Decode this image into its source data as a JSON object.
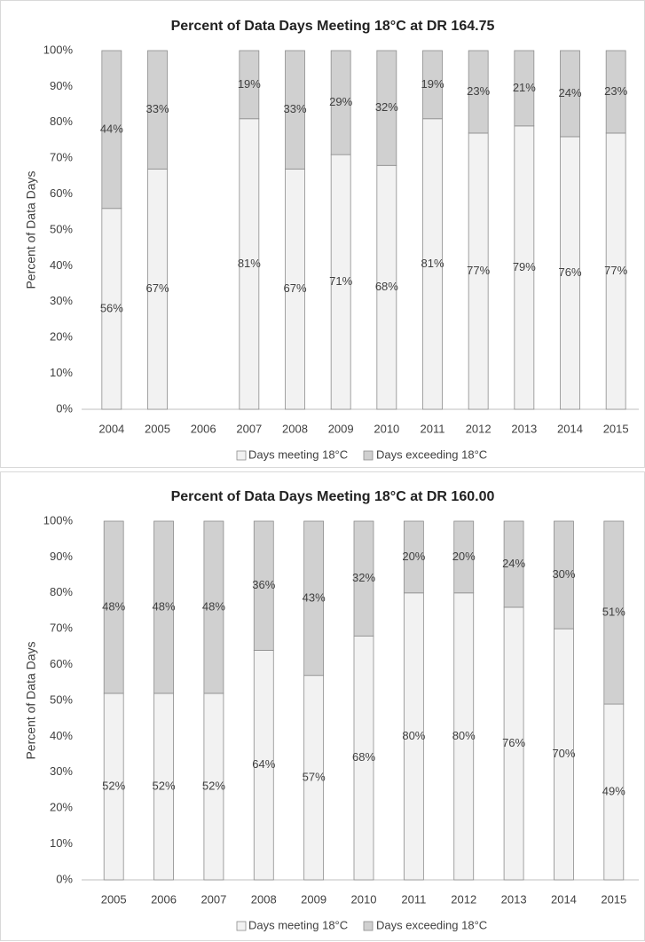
{
  "chart_data": [
    {
      "type": "stacked_bar",
      "title": "Percent of Data Days Meeting 18°C at DR 164.75",
      "y_label": "Percent of Data Days",
      "categories": [
        "2004",
        "2005",
        "2006",
        "2007",
        "2008",
        "2009",
        "2010",
        "2011",
        "2012",
        "2013",
        "2014",
        "2015"
      ],
      "series": [
        {
          "name": "Days meeting 18°C",
          "color": "#f2f2f2",
          "values": [
            56,
            67,
            null,
            81,
            67,
            71,
            68,
            81,
            77,
            79,
            76,
            77
          ],
          "value_labels": [
            "56%",
            "67%",
            null,
            "81%",
            "67%",
            "71%",
            "68%",
            "81%",
            "77%",
            "79%",
            "76%",
            "77%"
          ]
        },
        {
          "name": "Days exceeding 18°C",
          "color": "#d0d0d0",
          "values": [
            44,
            33,
            null,
            19,
            33,
            29,
            32,
            19,
            23,
            21,
            24,
            23
          ],
          "value_labels": [
            "44%",
            "33%",
            null,
            "19%",
            "33%",
            "29%",
            "32%",
            "19%",
            "23%",
            "21%",
            "24%",
            "23%"
          ]
        }
      ],
      "ylim": [
        0,
        100
      ],
      "yticks": [
        {
          "value": 0,
          "label": "0%"
        },
        {
          "value": 10,
          "label": "10%"
        },
        {
          "value": 20,
          "label": "20%"
        },
        {
          "value": 30,
          "label": "30%"
        },
        {
          "value": 40,
          "label": "40%"
        },
        {
          "value": 50,
          "label": "50%"
        },
        {
          "value": 60,
          "label": "60%"
        },
        {
          "value": 70,
          "label": "70%"
        },
        {
          "value": 80,
          "label": "80%"
        },
        {
          "value": 90,
          "label": "90%"
        },
        {
          "value": 100,
          "label": "100%"
        }
      ],
      "grid": false,
      "legend": "bottom"
    },
    {
      "type": "stacked_bar",
      "title": "Percent of Data Days Meeting 18°C at DR 160.00",
      "y_label": "Percent of Data Days",
      "categories": [
        "2005",
        "2006",
        "2007",
        "2008",
        "2009",
        "2010",
        "2011",
        "2012",
        "2013",
        "2014",
        "2015"
      ],
      "series": [
        {
          "name": "Days meeting 18°C",
          "color": "#f2f2f2",
          "values": [
            52,
            52,
            52,
            64,
            57,
            68,
            80,
            80,
            76,
            70,
            49
          ],
          "value_labels": [
            "52%",
            "52%",
            "52%",
            "64%",
            "57%",
            "68%",
            "80%",
            "80%",
            "76%",
            "70%",
            "49%"
          ]
        },
        {
          "name": "Days exceeding 18°C",
          "color": "#d0d0d0",
          "values": [
            48,
            48,
            48,
            36,
            43,
            32,
            20,
            20,
            24,
            30,
            51
          ],
          "value_labels": [
            "48%",
            "48%",
            "48%",
            "36%",
            "43%",
            "32%",
            "20%",
            "20%",
            "24%",
            "30%",
            "51%"
          ]
        }
      ],
      "ylim": [
        0,
        100
      ],
      "yticks": [
        {
          "value": 0,
          "label": "0%"
        },
        {
          "value": 10,
          "label": "10%"
        },
        {
          "value": 20,
          "label": "20%"
        },
        {
          "value": 30,
          "label": "30%"
        },
        {
          "value": 40,
          "label": "40%"
        },
        {
          "value": 50,
          "label": "50%"
        },
        {
          "value": 60,
          "label": "60%"
        },
        {
          "value": 70,
          "label": "70%"
        },
        {
          "value": 80,
          "label": "80%"
        },
        {
          "value": 90,
          "label": "90%"
        },
        {
          "value": 100,
          "label": "100%"
        }
      ],
      "grid": false,
      "legend": "bottom"
    }
  ]
}
